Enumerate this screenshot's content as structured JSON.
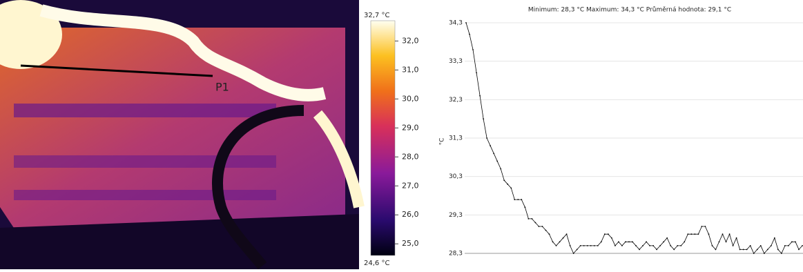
{
  "thermal_image": {
    "marker_label": "P1",
    "scale": {
      "ends": [
        {
          "value": 24.6,
          "label": "24,6 °C"
        },
        {
          "value": 32.7,
          "label": "32,7 °C"
        }
      ],
      "ticks": [
        {
          "value": 32,
          "label": "32,0"
        },
        {
          "value": 31,
          "label": "31,0"
        },
        {
          "value": 30,
          "label": "30,0"
        },
        {
          "value": 29,
          "label": "29,0"
        },
        {
          "value": 28,
          "label": "28,0"
        },
        {
          "value": 27,
          "label": "27,0"
        },
        {
          "value": 26,
          "label": "26,0"
        },
        {
          "value": 25,
          "label": "25,0"
        }
      ]
    }
  },
  "chart_data": {
    "type": "line",
    "title": "Minimum: 28,3 °C Maximum: 34,3 °C Průměrná hodnota: 29,1 °C",
    "y_label": "°C",
    "color": "#000000",
    "grid": true,
    "ylim": [
      28.3,
      34.3
    ],
    "yticks": [
      {
        "value": 28.3,
        "label": "28,3"
      },
      {
        "value": 29.3,
        "label": "29,3"
      },
      {
        "value": 30.3,
        "label": "30,3"
      },
      {
        "value": 31.3,
        "label": "31,3"
      },
      {
        "value": 32.3,
        "label": "32,3"
      },
      {
        "value": 33.3,
        "label": "33,3"
      },
      {
        "value": 34.3,
        "label": "34,3"
      }
    ],
    "values": [
      34.3,
      34.0,
      33.6,
      33.0,
      32.4,
      31.8,
      31.3,
      31.1,
      30.9,
      30.7,
      30.5,
      30.2,
      30.1,
      30.0,
      29.7,
      29.7,
      29.7,
      29.5,
      29.2,
      29.2,
      29.1,
      29.0,
      29.0,
      28.9,
      28.8,
      28.6,
      28.5,
      28.6,
      28.7,
      28.8,
      28.5,
      28.3,
      28.4,
      28.5,
      28.5,
      28.5,
      28.5,
      28.5,
      28.5,
      28.6,
      28.8,
      28.8,
      28.7,
      28.5,
      28.6,
      28.5,
      28.6,
      28.6,
      28.6,
      28.5,
      28.4,
      28.5,
      28.6,
      28.5,
      28.5,
      28.4,
      28.5,
      28.6,
      28.7,
      28.5,
      28.4,
      28.5,
      28.5,
      28.6,
      28.8,
      28.8,
      28.8,
      28.8,
      29.0,
      29.0,
      28.8,
      28.5,
      28.4,
      28.6,
      28.8,
      28.6,
      28.8,
      28.5,
      28.7,
      28.4,
      28.4,
      28.4,
      28.5,
      28.3,
      28.4,
      28.5,
      28.3,
      28.4,
      28.5,
      28.7,
      28.4,
      28.3,
      28.5,
      28.5,
      28.6,
      28.6,
      28.4,
      28.5
    ]
  }
}
